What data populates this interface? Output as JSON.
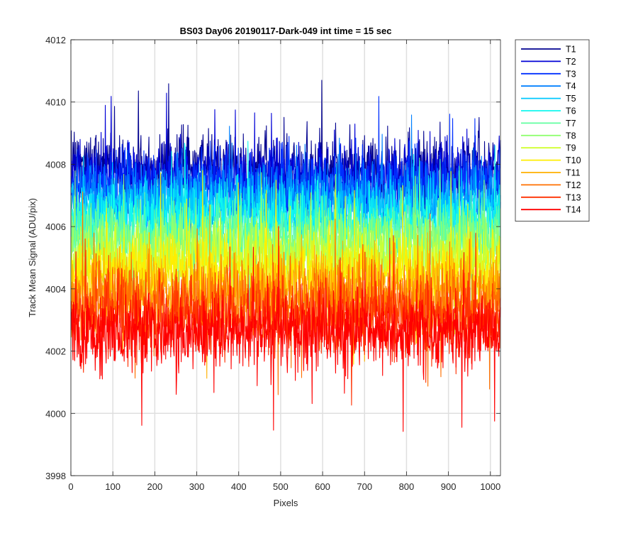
{
  "chart_data": {
    "type": "line",
    "title": "BS03 Day06 20190117-Dark-049 int time = 15 sec",
    "xlabel": "Pixels",
    "ylabel": "Track Mean Signal (ADU/pix)",
    "xlim": [
      0,
      1024
    ],
    "ylim": [
      3998,
      4012
    ],
    "xticks": [
      0,
      100,
      200,
      300,
      400,
      500,
      600,
      700,
      800,
      900,
      1000
    ],
    "yticks": [
      3998,
      4000,
      4002,
      4004,
      4006,
      4008,
      4010,
      4012
    ],
    "grid": true,
    "legend_position": "outside-top-right",
    "n_points": 1024,
    "noise_description": "dense per-pixel noise around each track mean",
    "series": [
      {
        "name": "T1",
        "mean": 4007.9,
        "spread": 0.9,
        "color": "#00008f"
      },
      {
        "name": "T2",
        "mean": 4007.6,
        "spread": 0.9,
        "color": "#0000d6"
      },
      {
        "name": "T3",
        "mean": 4007.3,
        "spread": 0.9,
        "color": "#0030ff"
      },
      {
        "name": "T4",
        "mean": 4007.0,
        "spread": 0.9,
        "color": "#0080ff"
      },
      {
        "name": "T5",
        "mean": 4006.6,
        "spread": 0.9,
        "color": "#00c8ff"
      },
      {
        "name": "T6",
        "mean": 4006.2,
        "spread": 0.9,
        "color": "#10f8ef"
      },
      {
        "name": "T7",
        "mean": 4005.8,
        "spread": 0.9,
        "color": "#60ffa0"
      },
      {
        "name": "T8",
        "mean": 4005.4,
        "spread": 0.9,
        "color": "#90ff70"
      },
      {
        "name": "T9",
        "mean": 4005.0,
        "spread": 0.9,
        "color": "#d0ff30"
      },
      {
        "name": "T10",
        "mean": 4004.5,
        "spread": 1.0,
        "color": "#ffee00"
      },
      {
        "name": "T11",
        "mean": 4004.0,
        "spread": 1.0,
        "color": "#ffb000"
      },
      {
        "name": "T12",
        "mean": 4003.6,
        "spread": 1.0,
        "color": "#ff7000"
      },
      {
        "name": "T13",
        "mean": 4003.1,
        "spread": 1.0,
        "color": "#ff3000"
      },
      {
        "name": "T14",
        "mean": 4002.6,
        "spread": 1.0,
        "color": "#ff0000"
      }
    ]
  }
}
